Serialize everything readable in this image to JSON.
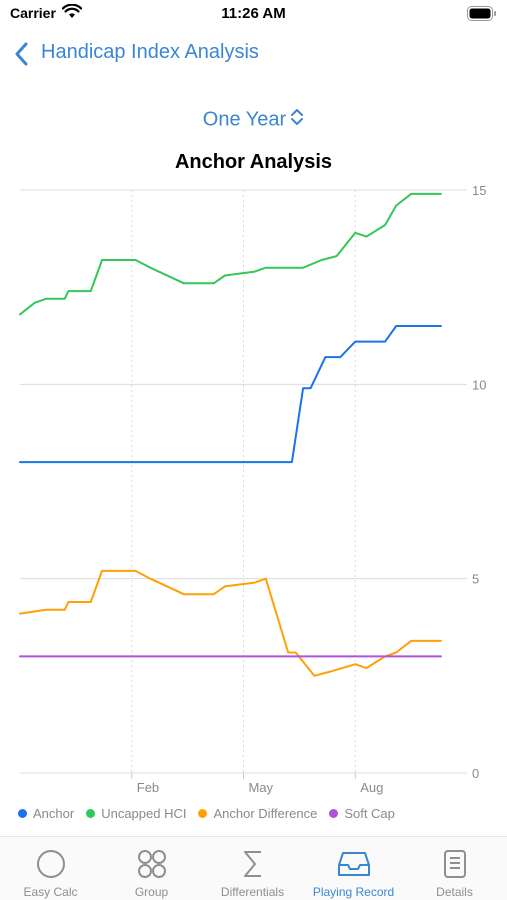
{
  "status_bar": {
    "carrier": "Carrier",
    "time": "11:26 AM"
  },
  "nav": {
    "back_title": "Handicap Index Analysis"
  },
  "range_selector": {
    "label": "One Year"
  },
  "chart_data": {
    "type": "line",
    "title": "Anchor Analysis",
    "xlabel": "",
    "ylabel": "",
    "ylim": [
      0,
      15
    ],
    "y_ticks": [
      "15",
      "10",
      "5",
      "0"
    ],
    "x_ticks": [
      {
        "label": "Feb",
        "x": 2
      },
      {
        "label": "May",
        "x": 5
      },
      {
        "label": "Aug",
        "x": 8
      }
    ],
    "xlim": [
      -1,
      11
    ],
    "grid": true,
    "legend_position": "bottom",
    "series": [
      {
        "name": "Anchor",
        "color": "#1a73e8",
        "points": [
          [
            -1,
            8
          ],
          [
            6.3,
            8
          ],
          [
            6.6,
            9.9
          ],
          [
            6.8,
            9.9
          ],
          [
            7.2,
            10.7
          ],
          [
            7.6,
            10.7
          ],
          [
            8,
            11.1
          ],
          [
            8.8,
            11.1
          ],
          [
            9.1,
            11.5
          ],
          [
            10.3,
            11.5
          ]
        ]
      },
      {
        "name": "Uncapped HCI",
        "color": "#34c759",
        "points": [
          [
            -1,
            11.8
          ],
          [
            -0.6,
            12.1
          ],
          [
            -0.3,
            12.2
          ],
          [
            0.2,
            12.2
          ],
          [
            0.3,
            12.4
          ],
          [
            0.6,
            12.4
          ],
          [
            0.9,
            12.4
          ],
          [
            1.2,
            13.2
          ],
          [
            2.1,
            13.2
          ],
          [
            2.5,
            13
          ],
          [
            3.4,
            12.6
          ],
          [
            4.2,
            12.6
          ],
          [
            4.5,
            12.8
          ],
          [
            5.3,
            12.9
          ],
          [
            5.6,
            13
          ],
          [
            6.2,
            13
          ],
          [
            6.6,
            13
          ],
          [
            7.1,
            13.2
          ],
          [
            7.5,
            13.3
          ],
          [
            8,
            13.9
          ],
          [
            8.3,
            13.8
          ],
          [
            8.8,
            14.1
          ],
          [
            9.1,
            14.6
          ],
          [
            9.5,
            14.9
          ],
          [
            10.3,
            14.9
          ]
        ]
      },
      {
        "name": "Anchor Difference",
        "color": "#ff9f0a",
        "points": [
          [
            -1,
            4.1
          ],
          [
            -0.3,
            4.2
          ],
          [
            0.2,
            4.2
          ],
          [
            0.3,
            4.4
          ],
          [
            0.9,
            4.4
          ],
          [
            1.2,
            5.2
          ],
          [
            2.1,
            5.2
          ],
          [
            2.5,
            5
          ],
          [
            3.4,
            4.6
          ],
          [
            4.2,
            4.6
          ],
          [
            4.5,
            4.8
          ],
          [
            5.3,
            4.9
          ],
          [
            5.6,
            5
          ],
          [
            6.2,
            3.1
          ],
          [
            6.4,
            3.1
          ],
          [
            6.9,
            2.5
          ],
          [
            7.3,
            2.6
          ],
          [
            8,
            2.8
          ],
          [
            8.3,
            2.7
          ],
          [
            8.8,
            3
          ],
          [
            9.1,
            3.1
          ],
          [
            9.5,
            3.4
          ],
          [
            10.3,
            3.4
          ]
        ]
      },
      {
        "name": "Soft Cap",
        "color": "#af52de",
        "points": [
          [
            -1,
            3
          ],
          [
            10.3,
            3
          ]
        ]
      }
    ]
  },
  "tabs": [
    {
      "label": "Easy Calc",
      "icon": "circle-icon",
      "active": false
    },
    {
      "label": "Group",
      "icon": "group-circles-icon",
      "active": false
    },
    {
      "label": "Differentials",
      "icon": "sigma-icon",
      "active": false
    },
    {
      "label": "Playing Record",
      "icon": "tray-icon",
      "active": true
    },
    {
      "label": "Details",
      "icon": "document-icon",
      "active": false
    }
  ],
  "colors": {
    "accent": "#3a86d4",
    "inactive": "#8e8e93"
  }
}
